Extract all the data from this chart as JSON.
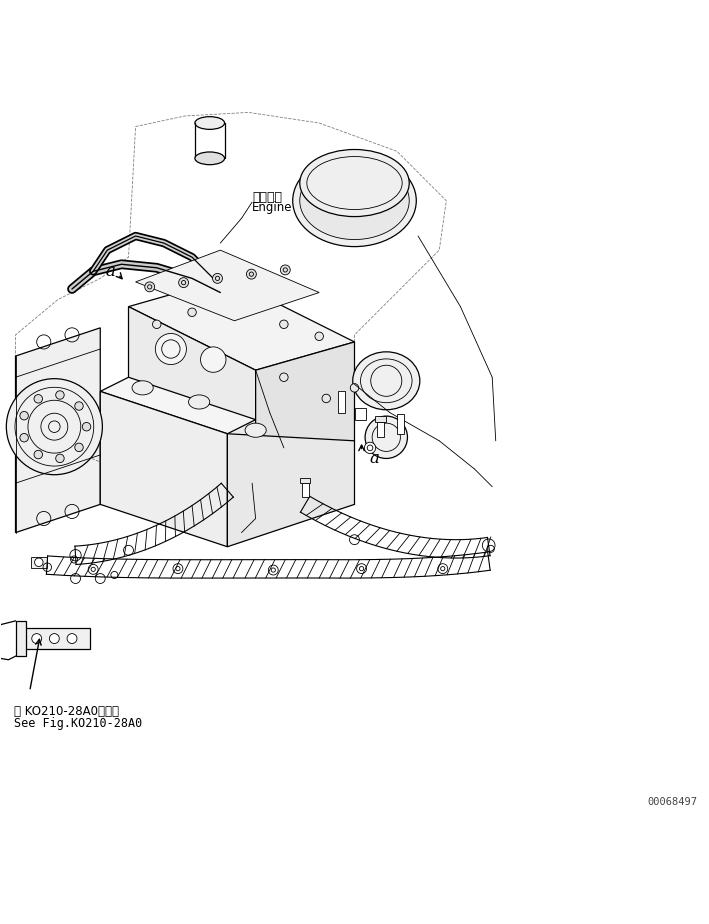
{
  "bg_color": "#ffffff",
  "fig_width": 7.09,
  "fig_height": 9.24,
  "dpi": 100,
  "engine_label_jp": "エンジン",
  "engine_label_en": "Engine",
  "label_a_engine": "a",
  "label_a_parts": "a",
  "bottom_label_jp": "第 KO210-28A0図参照",
  "bottom_label_en": "See Fig.KO210-28A0",
  "part_number": "00068497",
  "line_color": "#000000",
  "text_color": "#000000",
  "lw_main": 0.9,
  "lw_thin": 0.6,
  "lw_hose": 1.0
}
